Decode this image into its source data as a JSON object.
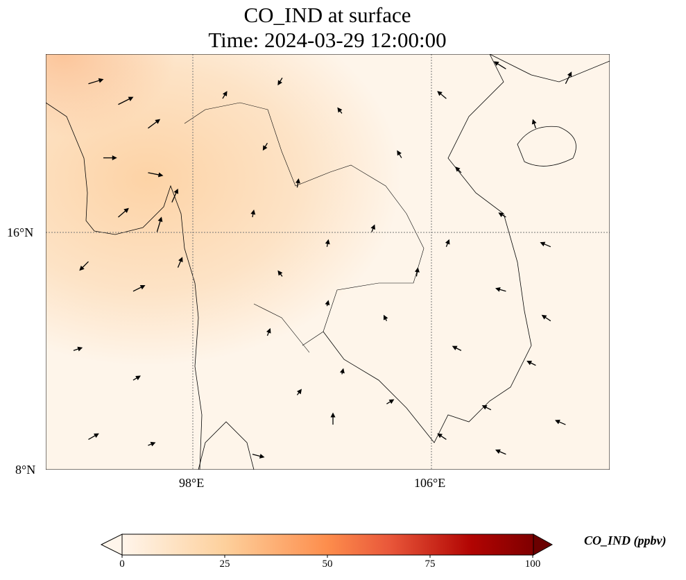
{
  "title": {
    "line1": "CO_IND at surface",
    "line2": "Time: 2024-03-29 12:00:00"
  },
  "map": {
    "extent_lon": [
      93.07,
      111.98
    ],
    "extent_lat": [
      7.98,
      22.0
    ],
    "x_ticks": [
      {
        "value": 98,
        "label": "98°E"
      },
      {
        "value": 106,
        "label": "106°E"
      }
    ],
    "y_ticks": [
      {
        "value": 16,
        "label": "16°N"
      },
      {
        "value": 8,
        "label": "8°N"
      }
    ],
    "wind_arrows": [
      [
        94.5,
        21,
        1,
        0.3
      ],
      [
        95.5,
        20.3,
        1,
        0.5
      ],
      [
        96.5,
        19.5,
        0.8,
        0.6
      ],
      [
        95,
        18.5,
        0.9,
        0
      ],
      [
        96.5,
        18,
        1,
        -0.2
      ],
      [
        97.3,
        17,
        0.4,
        0.9
      ],
      [
        95.5,
        16.5,
        0.7,
        0.6
      ],
      [
        96.8,
        16,
        0.3,
        1
      ],
      [
        94.5,
        15,
        -0.6,
        -0.6
      ],
      [
        96,
        14,
        0.8,
        0.4
      ],
      [
        97.5,
        14.8,
        0.3,
        0.7
      ],
      [
        94,
        12,
        0.6,
        0.2
      ],
      [
        96,
        11,
        0.5,
        0.3
      ],
      [
        94.5,
        9,
        0.7,
        0.4
      ],
      [
        96.5,
        8.8,
        0.5,
        0.2
      ],
      [
        99,
        20.5,
        0.3,
        0.5
      ],
      [
        100.5,
        19,
        -0.3,
        -0.5
      ],
      [
        101.5,
        17.5,
        0.1,
        0.6
      ],
      [
        100,
        16.5,
        0.1,
        0.5
      ],
      [
        102.5,
        15.5,
        0.1,
        0.5
      ],
      [
        104,
        16,
        0.2,
        0.5
      ],
      [
        101,
        14.5,
        -0.3,
        0.4
      ],
      [
        102.5,
        13.5,
        0.1,
        0.4
      ],
      [
        104.5,
        13,
        -0.2,
        0.4
      ],
      [
        100.5,
        12.5,
        0.2,
        0.5
      ],
      [
        101.5,
        10.5,
        0.3,
        0.4
      ],
      [
        103,
        11.2,
        0.1,
        0.4
      ],
      [
        104.5,
        10.2,
        0.5,
        0.3
      ],
      [
        102.7,
        9.5,
        0,
        0.8
      ],
      [
        100,
        8.5,
        0.8,
        -0.2
      ],
      [
        106.5,
        20.5,
        -0.6,
        0.5
      ],
      [
        108.5,
        21.5,
        -0.8,
        0.5
      ],
      [
        110.5,
        21,
        0.4,
        0.8
      ],
      [
        109.5,
        19.5,
        -0.2,
        0.6
      ],
      [
        107,
        18,
        -0.4,
        0.4
      ],
      [
        108.5,
        16.5,
        -0.5,
        0.3
      ],
      [
        110,
        15.5,
        -0.7,
        0.3
      ],
      [
        108.5,
        14,
        -0.7,
        0.2
      ],
      [
        110,
        13,
        -0.6,
        0.4
      ],
      [
        107,
        12,
        -0.6,
        0.3
      ],
      [
        109.5,
        11.5,
        -0.6,
        0.3
      ],
      [
        108,
        10,
        -0.6,
        0.3
      ],
      [
        110.5,
        9.5,
        -0.7,
        0.3
      ],
      [
        106.5,
        9,
        -0.6,
        0.4
      ],
      [
        108.5,
        8.5,
        -0.7,
        0.3
      ],
      [
        105.5,
        14.5,
        0.1,
        0.6
      ],
      [
        106.5,
        15.5,
        0.2,
        0.5
      ],
      [
        105,
        18.5,
        -0.3,
        0.5
      ],
      [
        103,
        20,
        -0.3,
        0.4
      ],
      [
        101,
        21.2,
        -0.3,
        -0.5
      ]
    ]
  },
  "colorbar": {
    "label": "CO_IND (ppbv)",
    "ticks": [
      "0",
      "25",
      "50",
      "75",
      "100"
    ],
    "range": [
      0,
      100
    ],
    "colors": [
      "#fff5eb",
      "#fdd09c",
      "#fd8d4c",
      "#e9573a",
      "#b10402",
      "#7f0000"
    ]
  }
}
